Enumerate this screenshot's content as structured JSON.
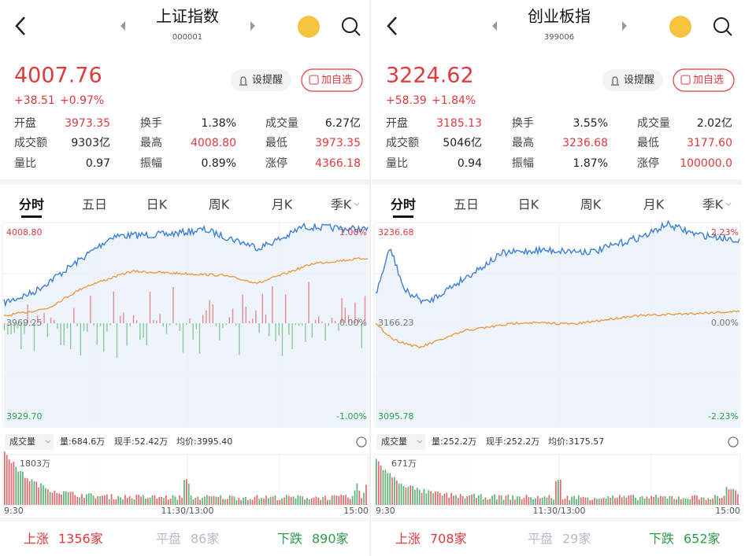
{
  "panels": [
    {
      "name": "上证指数",
      "code": "000001",
      "price": "4007.76",
      "change": "+38.51",
      "change_pct": "+0.97%",
      "buttons": [
        "设提醒",
        "加自选"
      ],
      "stats": [
        {
          "label": "开盘",
          "value": "3973.35"
        },
        {
          "label": "换手",
          "value": "1.38%"
        },
        {
          "label": "成交量",
          "value": "6.27亿"
        },
        {
          "label": "成交额",
          "value": "9303亿"
        },
        {
          "label": "最高",
          "value": "4008.80"
        },
        {
          "label": "最低",
          "value": "3973.35"
        },
        {
          "label": "量比",
          "value": "0.97"
        },
        {
          "label": "振幅",
          "value": "0.89%"
        },
        {
          "label": "涨停",
          "value": "4366.18"
        }
      ],
      "tabs": [
        "分时",
        "五日",
        "日K",
        "周K",
        "月K",
        "季K"
      ],
      "chart": {
        "high": "4008.80",
        "high_pct": "1.00%",
        "base": "3969.25",
        "base_pct": "0.00%",
        "low": "3929.70",
        "low_pct": "-1.00%"
      },
      "volume_bar": {
        "label": "成交量",
        "volume": "量:684.6万",
        "current": "现手:52.42万",
        "avg": "均价:3995.40"
      },
      "volume_max": "1803万",
      "time_axis": [
        "9:30",
        "11:30/13:00",
        "15:00"
      ],
      "breadth": [
        {
          "label": "上涨",
          "count": "1356家"
        },
        {
          "label": "平盘",
          "count": "86家"
        },
        {
          "label": "下跌",
          "count": "890家"
        }
      ]
    },
    {
      "name": "创业板指",
      "code": "399006",
      "price": "3224.62",
      "change": "+58.39",
      "change_pct": "+1.84%",
      "buttons": [
        "设提醒",
        "加自选"
      ],
      "stats": [
        {
          "label": "开盘",
          "value": "3185.13"
        },
        {
          "label": "换手",
          "value": "3.55%"
        },
        {
          "label": "成交量",
          "value": "2.02亿"
        },
        {
          "label": "成交额",
          "value": "5046亿"
        },
        {
          "label": "最高",
          "value": "3236.68"
        },
        {
          "label": "最低",
          "value": "3177.60"
        },
        {
          "label": "量比",
          "value": "0.94"
        },
        {
          "label": "振幅",
          "value": "1.87%"
        },
        {
          "label": "涨停",
          "value": "100000.0"
        }
      ],
      "tabs": [
        "分时",
        "五日",
        "日K",
        "周K",
        "月K",
        "季K"
      ],
      "chart": {
        "high": "3236.68",
        "high_pct": "2.23%",
        "base": "3166.23",
        "base_pct": "0.00%",
        "low": "3095.78",
        "low_pct": "-2.23%"
      },
      "volume_bar": {
        "label": "成交量",
        "volume": "量:252.2万",
        "current": "现手:252.2万",
        "avg": "均价:3175.57"
      },
      "volume_max": "671万",
      "time_axis": [
        "9:30",
        "11:30/13:00",
        "15:00"
      ],
      "breadth": [
        {
          "label": "上涨",
          "count": "708家"
        },
        {
          "label": "平盘",
          "count": "29家"
        },
        {
          "label": "下跌",
          "count": "652家"
        }
      ]
    }
  ]
}
